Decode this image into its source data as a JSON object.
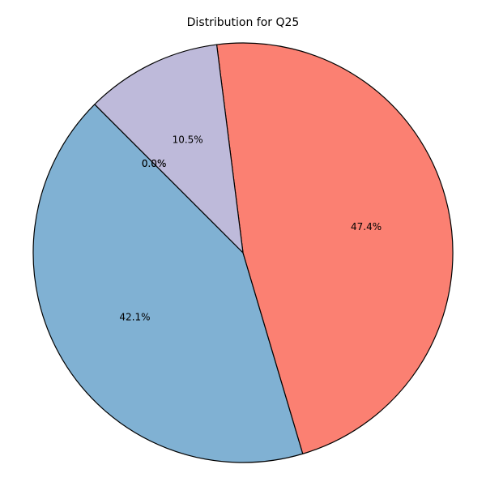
{
  "chart_data": {
    "type": "pie",
    "title": "Distribution for Q25",
    "start_angle_deg": 135,
    "direction": "counterclockwise",
    "slices": [
      {
        "value": 42.1,
        "label": "42.1%",
        "color": "#80b1d3"
      },
      {
        "value": 47.4,
        "label": "47.4%",
        "color": "#fb8072"
      },
      {
        "value": 10.5,
        "label": "10.5%",
        "color": "#bebada"
      },
      {
        "value": 0.0,
        "label": "0.0%",
        "color": "#8dd3c7"
      },
      {
        "value": 0.0,
        "label": "0.0%",
        "color": "#ffffb3"
      }
    ],
    "edge_color": "#000000"
  }
}
